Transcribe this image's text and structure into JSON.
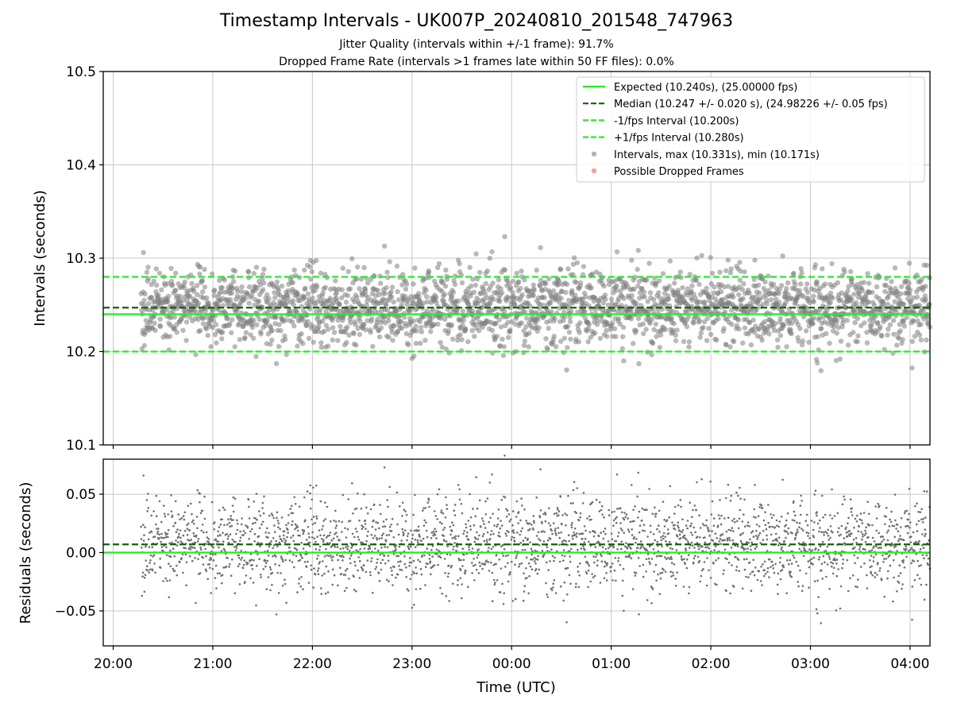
{
  "chart_data": [
    {
      "type": "scatter",
      "title": "Timestamp Intervals - UK007P_20240810_201548_747963",
      "subtitle_1": "Jitter Quality (intervals within +/-1 frame): 91.7%",
      "subtitle_2": "Dropped Frame Rate (intervals >1 frames late within 50 FF files): 0.0%",
      "ylabel": "Intervals (seconds)",
      "ylim": [
        10.1,
        10.5
      ],
      "yticks": [
        "10.1",
        "10.2",
        "10.3",
        "10.4",
        "10.5"
      ],
      "x_range_hours": [
        -0.1,
        8.2
      ],
      "data_x_range_hours": [
        0.28,
        8.2
      ],
      "grid": true,
      "legend_position": "upper right",
      "lines": [
        {
          "name": "Expected (10.240s), (25.00000 fps)",
          "y": 10.24,
          "style": "solid",
          "color": "#22ee22"
        },
        {
          "name": "Median (10.247 +/- 0.020 s), (24.98226 +/- 0.05 fps)",
          "y": 10.247,
          "style": "dashed",
          "color": "#126112"
        },
        {
          "name": "-1/fps Interval (10.200s)",
          "y": 10.2,
          "style": "dashed",
          "color": "#22ee22"
        },
        {
          "name": "+1/fps Interval (10.280s)",
          "y": 10.28,
          "style": "dashed",
          "color": "#22ee22"
        }
      ],
      "scatter": [
        {
          "name": "Intervals, max (10.331s), min (10.171s)",
          "median": 10.247,
          "std": 0.02,
          "max": 10.331,
          "min": 10.171,
          "count": 2600,
          "color": "#808080"
        },
        {
          "name": "Possible Dropped Frames",
          "count": 0,
          "color": "#f06060"
        }
      ]
    },
    {
      "type": "scatter",
      "xlabel": "Time (UTC)",
      "ylabel": "Residuals (seconds)",
      "ylim": [
        -0.08,
        0.08
      ],
      "yticks": [
        "−0.05",
        "0.00",
        "0.05"
      ],
      "ytick_values": [
        -0.05,
        0.0,
        0.05
      ],
      "xticks": [
        "20:00",
        "21:00",
        "22:00",
        "23:00",
        "00:00",
        "01:00",
        "02:00",
        "03:00",
        "04:00"
      ],
      "grid": true,
      "lines": [
        {
          "name": "Expected",
          "y": 0.0,
          "style": "solid",
          "color": "#22ee22"
        },
        {
          "name": "Median",
          "y": 0.007,
          "style": "dashed",
          "color": "#126112"
        }
      ],
      "scatter_color": "#707070"
    }
  ]
}
